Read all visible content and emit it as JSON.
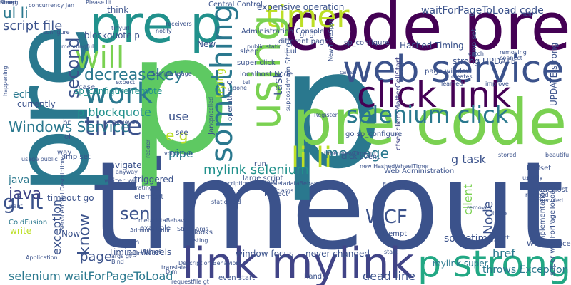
{
  "colors": {
    "background": "#ffffff",
    "palette": [
      "#440154",
      "#46327e",
      "#365c8d",
      "#277f8e",
      "#1fa187",
      "#4ac16d",
      "#a0da39",
      "#fde725"
    ]
  },
  "words": [
    {
      "text": "timeout",
      "color": "#3b528b"
    },
    {
      "text": "p",
      "color": "#5ec962"
    },
    {
      "text": "p",
      "color": "#2a788e"
    },
    {
      "text": "pre",
      "color": "#2a788e"
    },
    {
      "text": "code pre",
      "color": "#440154"
    },
    {
      "text": "pre code",
      "color": "#7ad151"
    },
    {
      "text": "pre p",
      "color": "#21918c"
    },
    {
      "text": "web service",
      "color": "#3b528b"
    },
    {
      "text": "click link",
      "color": "#440154"
    },
    {
      "text": "link mylink",
      "color": "#414487"
    },
    {
      "text": "selenium click",
      "color": "#2a788e"
    },
    {
      "text": "p strong",
      "color": "#22a884"
    },
    {
      "text": "timer",
      "color": "#bddf26"
    },
    {
      "text": "will",
      "color": "#7ad151"
    },
    {
      "text": "work",
      "color": "#2a788e"
    },
    {
      "text": "time",
      "color": "#3b528b"
    },
    {
      "text": "something",
      "color": "#2a788e"
    },
    {
      "text": "using",
      "color": "#7ad151"
    },
    {
      "text": "li li",
      "color": "#bddf26"
    },
    {
      "text": "Windows Service",
      "color": "#2a788e"
    },
    {
      "text": "mylink selenium",
      "color": "#21918c"
    },
    {
      "text": "message",
      "color": "#2a788e"
    },
    {
      "text": "WCF",
      "color": "#3b528b"
    },
    {
      "text": "gt lt",
      "color": "#3b528b"
    },
    {
      "text": "java",
      "color": "#414487"
    },
    {
      "text": "send",
      "color": "#3b528b"
    },
    {
      "text": "e g",
      "color": "#bddf26"
    },
    {
      "text": "second",
      "color": "#3b528b"
    },
    {
      "text": "decreasekey",
      "color": "#2a788e"
    },
    {
      "text": "ul li",
      "color": "#2a788e"
    },
    {
      "text": "script file",
      "color": "#3b528b"
    },
    {
      "text": "know",
      "color": "#3b528b"
    },
    {
      "text": "exception",
      "color": "#3b528b"
    },
    {
      "text": "page",
      "color": "#3b528b"
    },
    {
      "text": "selenium waitForPageToLoad",
      "color": "#2a788e"
    },
    {
      "text": "waitForPageToLoad code",
      "color": "#3b528b"
    },
    {
      "text": "g task",
      "color": "#3b528b"
    },
    {
      "text": "Node",
      "color": "#3b528b"
    },
    {
      "text": "client",
      "color": "#7ad151"
    },
    {
      "text": "href",
      "color": "#2a788e"
    },
    {
      "text": "throws Exception",
      "color": "#2a788e"
    },
    {
      "text": "sometimes",
      "color": "#3b528b"
    },
    {
      "text": "dead line",
      "color": "#3b528b"
    },
    {
      "text": "mylink super",
      "color": "#2a788e"
    },
    {
      "text": "expensive operation",
      "color": "#3b528b"
    },
    {
      "text": "Central Control",
      "color": "#3b528b"
    },
    {
      "text": "think",
      "color": "#3b528b"
    },
    {
      "text": "blockquote p",
      "color": "#3b528b"
    },
    {
      "text": "p blockquote",
      "color": "#21918c"
    },
    {
      "text": "sp_configure remote",
      "color": "#21918c"
    },
    {
      "text": "Administration Console",
      "color": "#3b528b"
    },
    {
      "text": "Hashed Timing",
      "color": "#3b528b"
    },
    {
      "text": "strong UPDATE",
      "color": "#3b528b"
    },
    {
      "text": "UPDATE strong",
      "color": "#3b528b"
    },
    {
      "text": "use",
      "color": "#3b528b"
    },
    {
      "text": "pipe",
      "color": "#2a788e"
    },
    {
      "text": "triggered",
      "color": "#3b528b"
    },
    {
      "text": "Timing Wheels",
      "color": "#3b528b"
    },
    {
      "text": "task",
      "color": "#3b528b"
    },
    {
      "text": "trying",
      "color": "#bddf26"
    },
    {
      "text": "java util",
      "color": "#2a788e"
    },
    {
      "text": "cfset clientMatterCellStart",
      "color": "#414487"
    },
    {
      "text": "lt cfset",
      "color": "#3b528b"
    },
    {
      "text": "call",
      "color": "#3b528b"
    },
    {
      "text": "Web Administration",
      "color": "#3b528b"
    },
    {
      "text": "never changed",
      "color": "#3b528b"
    },
    {
      "text": "window focus",
      "color": "#3b528b"
    },
    {
      "text": "WCF service",
      "color": "#3b528b"
    },
    {
      "text": "super click",
      "color": "#3b528b"
    },
    {
      "text": "different page",
      "color": "#3b528b"
    },
    {
      "text": "gt gt",
      "color": "#3b528b"
    },
    {
      "text": "li ul",
      "color": "#3b528b"
    },
    {
      "text": "sleep",
      "color": "#3b528b"
    },
    {
      "text": "localhost Node",
      "color": "#3b528b"
    },
    {
      "text": "operation 0",
      "color": "#3b528b"
    },
    {
      "text": "New",
      "color": "#3b528b"
    },
    {
      "text": "see",
      "color": "#3b528b"
    },
    {
      "text": "case",
      "color": "#3b528b"
    },
    {
      "text": "echo",
      "color": "#2a788e"
    },
    {
      "text": "currently",
      "color": "#3b528b"
    },
    {
      "text": "navigate",
      "color": "#3b528b"
    },
    {
      "text": "writer will",
      "color": "#3b528b"
    },
    {
      "text": "element",
      "color": "#3b528b"
    },
    {
      "text": "example",
      "color": "#3b528b"
    },
    {
      "text": "problem",
      "color": "#3b528b"
    },
    {
      "text": "looks",
      "color": "#3b528b"
    },
    {
      "text": "even start",
      "color": "#3b528b"
    },
    {
      "text": "timeout go",
      "color": "#3b528b"
    },
    {
      "text": "write",
      "color": "#bddf26"
    },
    {
      "text": "Now",
      "color": "#3b528b"
    },
    {
      "text": "ColdFusion",
      "color": "#2a788e"
    },
    {
      "text": "amp set",
      "color": "#3b528b"
    },
    {
      "text": "way",
      "color": "#3b528b"
    },
    {
      "text": "Project",
      "color": "#3b528b"
    },
    {
      "text": "run",
      "color": "#3b528b"
    },
    {
      "text": "large script",
      "color": "#3b528b"
    },
    {
      "text": "click event",
      "color": "#3b528b"
    },
    {
      "text": "attempt",
      "color": "#3b528b"
    },
    {
      "text": "implementation",
      "color": "#3b528b"
    },
    {
      "text": "super waitForPageToLoad",
      "color": "#3b528b"
    },
    {
      "text": "BNodeHost",
      "color": "#3b528b"
    },
    {
      "text": "Please lit",
      "color": "#3b528b"
    },
    {
      "text": "concurrency Jan",
      "color": "#3b528b"
    },
    {
      "text": "configure",
      "color": "#3b528b"
    },
    {
      "text": "sp_configure",
      "color": "#3b528b"
    },
    {
      "text": "page window",
      "color": "#3b528b"
    },
    {
      "text": "go sp_configure",
      "color": "#3b528b"
    },
    {
      "text": "args gt",
      "color": "#3b528b"
    },
    {
      "text": "String args",
      "color": "#3b528b"
    },
    {
      "text": "public static",
      "color": "#3b528b"
    },
    {
      "text": "amp set",
      "color": "#3b528b"
    },
    {
      "text": "main String",
      "color": "#3b528b"
    },
    {
      "text": "Jan p",
      "color": "#3b528b"
    },
    {
      "text": "ol",
      "color": "#3b528b"
    },
    {
      "text": "br",
      "color": "#3b528b"
    },
    {
      "text": "Bind",
      "color": "#3b528b"
    },
    {
      "text": "tried",
      "color": "#3b528b"
    },
    {
      "text": "Dim",
      "color": "#3b528b"
    },
    {
      "text": "lt file",
      "color": "#3b528b"
    },
    {
      "text": "lt args",
      "color": "#3b528b"
    },
    {
      "text": "handle",
      "color": "#3b528b"
    },
    {
      "text": "start",
      "color": "#3b528b"
    },
    {
      "text": "finished",
      "color": "#3b528b"
    },
    {
      "text": "removes",
      "color": "#3b528b"
    },
    {
      "text": "detect",
      "color": "#3b528b"
    },
    {
      "text": "reached",
      "color": "#3b528b"
    },
    {
      "text": "want",
      "color": "#3b528b"
    },
    {
      "text": "usage public",
      "color": "#3b528b"
    },
    {
      "text": "Application",
      "color": "#3b528b"
    },
    {
      "text": "request",
      "color": "#3b528b"
    },
    {
      "text": "tinyurl",
      "color": "#3b528b"
    },
    {
      "text": "receivers",
      "color": "#3b528b"
    },
    {
      "text": "notify",
      "color": "#3b528b"
    },
    {
      "text": "help",
      "color": "#3b528b"
    },
    {
      "text": "meaningful",
      "color": "#3b528b"
    },
    {
      "text": "expect",
      "color": "#3b528b"
    },
    {
      "text": "achieved",
      "color": "#3b528b"
    },
    {
      "text": "happening",
      "color": "#3b528b"
    },
    {
      "text": "cancelled",
      "color": "#3b528b"
    },
    {
      "text": "catch",
      "color": "#3b528b"
    },
    {
      "text": "Register",
      "color": "#3b528b"
    },
    {
      "text": "supposed",
      "color": "#3b528b"
    },
    {
      "text": "learned",
      "color": "#3b528b"
    },
    {
      "text": "improve",
      "color": "#3b528b"
    },
    {
      "text": "creates",
      "color": "#3b528b"
    },
    {
      "text": "Sample usage",
      "color": "#3b528b"
    },
    {
      "text": "void main",
      "color": "#3b528b"
    },
    {
      "text": "anyway",
      "color": "#3b528b"
    },
    {
      "text": "static void",
      "color": "#3b528b"
    },
    {
      "text": "optimized",
      "color": "#3b528b"
    },
    {
      "text": "translate",
      "color": "#3b528b"
    },
    {
      "text": "rescheduled",
      "color": "#3b528b"
    },
    {
      "text": "usually",
      "color": "#3b528b"
    },
    {
      "text": "stored",
      "color": "#3b528b"
    },
    {
      "text": "beautiful",
      "color": "#3b528b"
    },
    {
      "text": "removing",
      "color": "#3b528b"
    },
    {
      "text": "connect",
      "color": "#3b528b"
    },
    {
      "text": "timer newTimeout",
      "color": "#3b528b"
    },
    {
      "text": "new HashedWheelTimer",
      "color": "#3b528b"
    },
    {
      "text": "done",
      "color": "#3b528b"
    },
    {
      "text": "tell",
      "color": "#3b528b"
    },
    {
      "text": "reader",
      "color": "#3b528b"
    },
    {
      "text": "localhost",
      "color": "#3b528b"
    },
    {
      "text": "ServiceModel Description",
      "color": "#3b528b"
    },
    {
      "text": "Description ServiceMetadataBehavior",
      "color": "#3b528b"
    },
    {
      "text": "metadataBehavior",
      "color": "#3b528b"
    },
    {
      "text": "Administration",
      "color": "#3b528b"
    },
    {
      "text": "New TimeSpan",
      "color": "#3b528b"
    },
    {
      "text": "Description Behaviors",
      "color": "#3b528b"
    },
    {
      "text": "file gt",
      "color": "#3b528b"
    },
    {
      "text": "cause",
      "color": "#3b528b"
    },
    {
      "text": "iterating",
      "color": "#3b528b"
    },
    {
      "text": "existing",
      "color": "#3b528b"
    },
    {
      "text": "strong",
      "color": "#3b528b"
    },
    {
      "text": "timed",
      "color": "#3b528b"
    },
    {
      "text": "Sleep",
      "color": "#3b528b"
    }
  ]
}
